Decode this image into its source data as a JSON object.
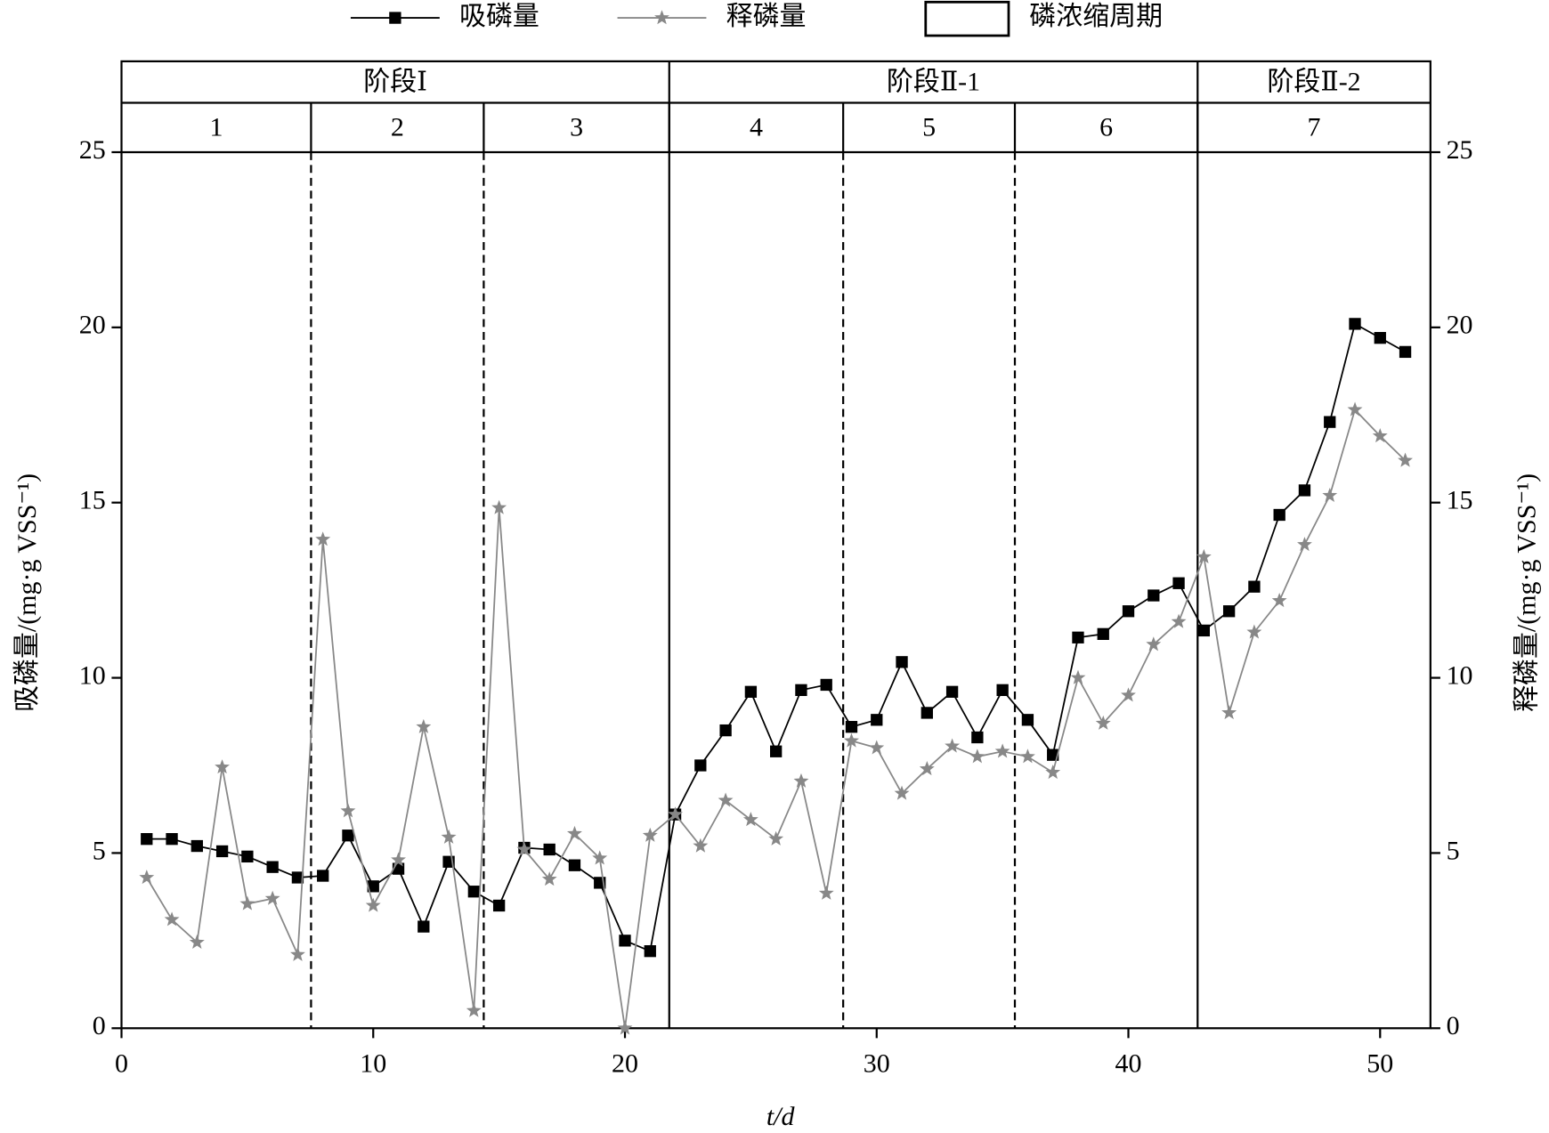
{
  "chart_data": {
    "type": "line",
    "x_label": "t/d",
    "y_label": "吸磷量/(mg·g VSS⁻¹)",
    "y2_label": "释磷量/(mg·g VSS⁻¹)",
    "x": [
      1,
      2,
      3,
      4,
      5,
      6,
      7,
      8,
      9,
      10,
      11,
      12,
      13,
      14,
      15,
      16,
      17,
      18,
      19,
      20,
      21,
      22,
      23,
      24,
      25,
      26,
      27,
      28,
      29,
      30,
      31,
      32,
      33,
      34,
      35,
      36,
      37,
      38,
      39,
      40,
      41,
      42,
      43,
      44,
      45,
      46,
      47,
      48,
      49,
      50,
      51
    ],
    "series": [
      {
        "name": "吸磷量",
        "color": "#000000",
        "marker": "square",
        "values": [
          5.4,
          5.4,
          5.2,
          5.05,
          4.9,
          4.6,
          4.3,
          4.35,
          5.5,
          4.05,
          4.55,
          2.9,
          4.75,
          3.9,
          3.5,
          5.15,
          5.1,
          4.65,
          4.15,
          2.5,
          2.2,
          6.1,
          7.5,
          8.5,
          9.6,
          7.9,
          9.65,
          9.8,
          8.6,
          8.8,
          10.45,
          9.0,
          9.6,
          8.3,
          9.65,
          8.8,
          7.8,
          11.15,
          11.25,
          11.9,
          12.35,
          12.7,
          11.35,
          11.9,
          12.6,
          14.65,
          15.35,
          17.3,
          20.1,
          19.7,
          19.3
        ]
      },
      {
        "name": "释磷量",
        "color": "#888888",
        "marker": "star",
        "axis": "y2",
        "values": [
          4.3,
          3.1,
          2.45,
          7.45,
          3.55,
          3.7,
          2.1,
          13.95,
          6.2,
          3.5,
          4.8,
          8.6,
          5.45,
          0.5,
          14.85,
          5.1,
          4.25,
          5.55,
          4.85,
          0,
          5.5,
          6.1,
          5.2,
          6.5,
          5.95,
          5.4,
          7.05,
          3.85,
          8.2,
          8.0,
          6.7,
          7.4,
          8.05,
          7.75,
          7.9,
          7.75,
          7.3,
          10.0,
          8.7,
          9.5,
          10.95,
          11.6,
          13.45,
          9.0,
          11.3,
          12.2,
          13.8,
          15.2,
          17.65,
          16.9,
          16.2
        ]
      }
    ],
    "xlim": [
      0,
      52
    ],
    "xticks": [
      0,
      10,
      20,
      30,
      40,
      50
    ],
    "ylim": [
      0,
      25
    ],
    "yticks": [
      0,
      5,
      10,
      15,
      20,
      25
    ],
    "y2lim": [
      0,
      25
    ],
    "y2ticks": [
      0,
      5,
      10,
      15,
      20,
      25
    ],
    "period_legend": "磷浓缩周期",
    "periods": [
      "1",
      "2",
      "3",
      "4",
      "5",
      "6",
      "7"
    ],
    "period_bounds": [
      0,
      7.53,
      14.39,
      21.76,
      28.67,
      35.49,
      42.75,
      52
    ],
    "stages": [
      {
        "name": "阶段Ⅰ",
        "start": 0,
        "end": 21.76
      },
      {
        "name": "阶段Ⅱ-1",
        "start": 21.76,
        "end": 42.75
      },
      {
        "name": "阶段Ⅱ-2",
        "start": 42.75,
        "end": 52
      }
    ]
  }
}
